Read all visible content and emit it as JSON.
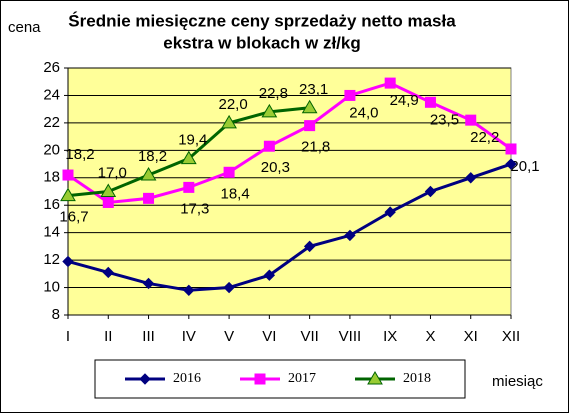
{
  "chart_data": {
    "type": "line",
    "title": [
      "Średnie miesięczne ceny sprzedaży netto masła",
      "ekstra w blokach w zł/kg"
    ],
    "y_label": "cena",
    "x_label": "miesiąc",
    "categories": [
      "I",
      "II",
      "III",
      "IV",
      "V",
      "VI",
      "VII",
      "VIII",
      "IX",
      "X",
      "XI",
      "XII"
    ],
    "ylim": [
      8,
      26
    ],
    "yticks": [
      8,
      10,
      12,
      14,
      16,
      18,
      20,
      22,
      24,
      26
    ],
    "grid": true,
    "legend": "bottom",
    "series": [
      {
        "name": "2016",
        "color": "#000080",
        "marker": "diamond",
        "values": [
          11.9,
          11.1,
          10.3,
          9.8,
          10.0,
          10.9,
          13.0,
          13.8,
          15.5,
          17.0,
          18.0,
          19.0
        ]
      },
      {
        "name": "2017",
        "color": "#ff00ff",
        "marker": "square",
        "values": [
          18.2,
          16.2,
          16.5,
          17.3,
          18.4,
          20.3,
          21.8,
          24.0,
          24.9,
          23.5,
          22.2,
          20.1
        ],
        "value_labels": [
          "18,2",
          null,
          null,
          "17,3",
          "18,4",
          "20,3",
          "21,8",
          "24,0",
          "24,9",
          "23,5",
          "22,2",
          "20,1"
        ]
      },
      {
        "name": "2018",
        "color": "#006400",
        "marker_color": "#99cc33",
        "marker": "triangle",
        "values": [
          16.7,
          17.0,
          18.2,
          19.4,
          22.0,
          22.8,
          23.1,
          null,
          null,
          null,
          null,
          null
        ],
        "value_labels": [
          "16,7",
          "17,0",
          "18,2",
          "19,4",
          "22,0",
          "22,8",
          "23,1",
          null,
          null,
          null,
          null,
          null
        ]
      }
    ]
  }
}
